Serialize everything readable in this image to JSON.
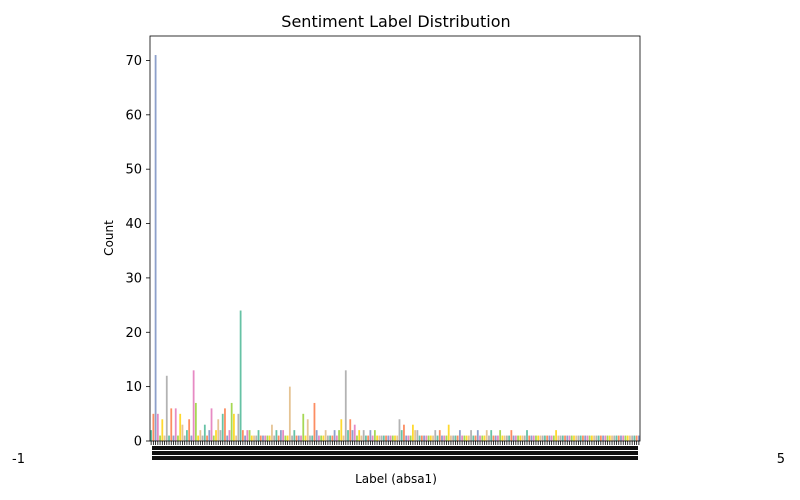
{
  "chart_data": {
    "type": "bar",
    "title": "Sentiment Label Distribution",
    "xlabel": "Label (absa1)",
    "ylabel": "Count",
    "ylim": [
      0,
      74.5
    ],
    "yticks": [
      0,
      10,
      20,
      30,
      40,
      50,
      60,
      70
    ],
    "ytick_labels": [
      "0",
      "10",
      "20",
      "30",
      "40",
      "50",
      "60",
      "70"
    ],
    "x_edge_labels": [
      "-1",
      "5"
    ],
    "palette": [
      "#66c2a5",
      "#fc8d62",
      "#8da0cb",
      "#e78ac3",
      "#a6d854",
      "#ffd92f",
      "#e5c494",
      "#b3b3b3"
    ],
    "grid": false,
    "legend": "none",
    "values": [
      2,
      5,
      71,
      5,
      1,
      4,
      1,
      12,
      1,
      6,
      1,
      6,
      1,
      5,
      3,
      1,
      2,
      4,
      1,
      13,
      7,
      1,
      2,
      1,
      3,
      1,
      2,
      6,
      1,
      2,
      4,
      2,
      5,
      6,
      1,
      2,
      7,
      5,
      1,
      5,
      24,
      2,
      1,
      2,
      2,
      1,
      1,
      1,
      2,
      1,
      1,
      1,
      1,
      1,
      3,
      1,
      2,
      1,
      2,
      2,
      1,
      1,
      10,
      1,
      2,
      1,
      1,
      1,
      5,
      1,
      4,
      1,
      1,
      7,
      2,
      1,
      1,
      1,
      2,
      1,
      1,
      1,
      2,
      1,
      2,
      4,
      1,
      13,
      2,
      4,
      2,
      3,
      1,
      2,
      1,
      2,
      1,
      1,
      2,
      1,
      2,
      1,
      1,
      1,
      1,
      1,
      1,
      1,
      1,
      1,
      1,
      4,
      2,
      3,
      1,
      1,
      1,
      3,
      2,
      2,
      1,
      1,
      1,
      1,
      1,
      1,
      1,
      2,
      1,
      2,
      1,
      1,
      1,
      3,
      1,
      1,
      1,
      1,
      2,
      1,
      1,
      1,
      1,
      2,
      1,
      1,
      2,
      1,
      1,
      1,
      2,
      1,
      2,
      1,
      1,
      1,
      2,
      1,
      1,
      1,
      1,
      2,
      1,
      1,
      1,
      1,
      1,
      1,
      2,
      1,
      1,
      1,
      1,
      1,
      1,
      1,
      1,
      1,
      1,
      1,
      1,
      2,
      1,
      1,
      1,
      1,
      1,
      1,
      1,
      1,
      1,
      1,
      1,
      1,
      1,
      1,
      1,
      1,
      1,
      1,
      1,
      1,
      1,
      1,
      1,
      1,
      1,
      1,
      1,
      1,
      1,
      1,
      1,
      1,
      1,
      1,
      1,
      1,
      1
    ]
  }
}
